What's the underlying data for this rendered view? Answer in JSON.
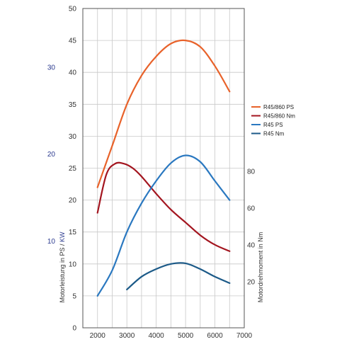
{
  "chart_data": {
    "type": "line",
    "x_ticks": [
      "2000",
      "3000",
      "4000",
      "5000",
      "6000",
      "7000"
    ],
    "xlim": [
      1500,
      7000
    ],
    "y_left": {
      "ticks": [
        "0",
        "5",
        "10",
        "15",
        "20",
        "25",
        "30",
        "35",
        "40",
        "45",
        "50"
      ],
      "ylim": [
        0,
        50
      ]
    },
    "y_kw": {
      "ticks": [
        "10",
        "20",
        "30"
      ]
    },
    "y_right": {
      "ticks": [
        "20",
        "40",
        "60",
        "80"
      ],
      "label": "Motordrehmoment in Nm"
    },
    "ylabel_prefix": "Motorleistung in PS / ",
    "ylabel_kw": "KW",
    "series": [
      {
        "name": "R45/860 PS",
        "color": "#e8622a",
        "axis": "left",
        "x": [
          2000,
          2500,
          3000,
          3500,
          4000,
          4500,
          5000,
          5500,
          6000,
          6500
        ],
        "y": [
          22,
          28.5,
          35,
          39.5,
          42.5,
          44.5,
          45,
          44,
          41,
          37
        ]
      },
      {
        "name": "R45/860 Nm",
        "color": "#a3151f",
        "axis": "left",
        "x": [
          2000,
          2300,
          2600,
          2900,
          3200,
          3500,
          4000,
          4500,
          5000,
          5500,
          6000,
          6500
        ],
        "y": [
          18,
          24,
          25.7,
          25.7,
          25,
          23.7,
          21,
          18.5,
          16.5,
          14.5,
          13,
          12
        ]
      },
      {
        "name": "R45 PS",
        "color": "#2a78c0",
        "axis": "left",
        "x": [
          2000,
          2500,
          3000,
          3500,
          4000,
          4500,
          5000,
          5500,
          6000,
          6500
        ],
        "y": [
          5,
          9,
          15,
          19.5,
          23,
          25.8,
          27,
          26,
          23,
          20
        ]
      },
      {
        "name": "R45 Nm",
        "color": "#1c5a88",
        "axis": "left",
        "x": [
          3000,
          3500,
          4000,
          4500,
          5000,
          5500,
          6000,
          6500
        ],
        "y": [
          6,
          8,
          9.2,
          10,
          10.1,
          9.2,
          8,
          7
        ]
      }
    ],
    "grid": true,
    "legend_position": "right"
  }
}
